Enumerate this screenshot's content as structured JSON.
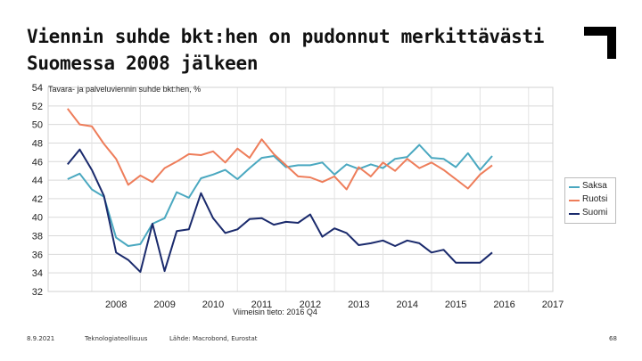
{
  "slide": {
    "title_line1": "Viennin suhde bkt:hen on pudonnut merkittävästi",
    "title_line2": "Suomessa 2008 jälkeen"
  },
  "footer": {
    "date": "8.9.2021",
    "org": "Teknologiateollisuus",
    "source": "Lähde: Macrobond, Eurostat",
    "page": "68"
  },
  "colors": {
    "saksa": "#4aa8c0",
    "ruotsi": "#ee7d5a",
    "suomi": "#1a2a6c",
    "logo": "#000000"
  },
  "chart_data": {
    "type": "line",
    "title": "Tavara- ja palveluviennin suhde bkt:hen, %",
    "note": "Viimeisin tieto: 2016 Q4",
    "x_start": 2007.5,
    "x_step": 0.25,
    "xlim": [
      2007.1,
      2017.5
    ],
    "ylim": [
      32,
      54
    ],
    "yticks": [
      "54",
      "52",
      "50",
      "48",
      "46",
      "44",
      "42",
      "40",
      "38",
      "36",
      "34",
      "32"
    ],
    "xticks": [
      "2008",
      "2009",
      "2010",
      "2011",
      "2012",
      "2013",
      "2014",
      "2015",
      "2016",
      "2017"
    ],
    "series": [
      {
        "name": "Saksa",
        "values": [
          44.1,
          44.7,
          43.0,
          42.2,
          37.8,
          36.9,
          37.1,
          39.3,
          39.9,
          42.7,
          42.1,
          44.2,
          44.6,
          45.1,
          44.1,
          45.3,
          46.4,
          46.6,
          45.4,
          45.6,
          45.6,
          45.9,
          44.6,
          45.7,
          45.2,
          45.7,
          45.3,
          46.3,
          46.5,
          47.8,
          46.4,
          46.3,
          45.4,
          46.9,
          45.1,
          46.6
        ]
      },
      {
        "name": "Ruotsi",
        "values": [
          51.7,
          50.0,
          49.8,
          47.9,
          46.3,
          43.5,
          44.5,
          43.8,
          45.3,
          46.0,
          46.8,
          46.7,
          47.1,
          45.9,
          47.4,
          46.4,
          48.4,
          46.8,
          45.6,
          44.4,
          44.3,
          43.8,
          44.4,
          43.0,
          45.4,
          44.4,
          45.9,
          45.0,
          46.3,
          45.3,
          45.9,
          45.1,
          44.1,
          43.1,
          44.6,
          45.6
        ]
      },
      {
        "name": "Suomi",
        "values": [
          45.7,
          47.3,
          45.1,
          42.3,
          36.2,
          35.4,
          34.1,
          39.3,
          34.2,
          38.5,
          38.7,
          42.6,
          39.9,
          38.3,
          38.7,
          39.8,
          39.9,
          39.2,
          39.5,
          39.4,
          40.3,
          37.9,
          38.8,
          38.3,
          37.0,
          37.2,
          37.5,
          36.9,
          37.5,
          37.2,
          36.2,
          36.5,
          35.1,
          35.1,
          35.1,
          36.2
        ]
      }
    ]
  }
}
